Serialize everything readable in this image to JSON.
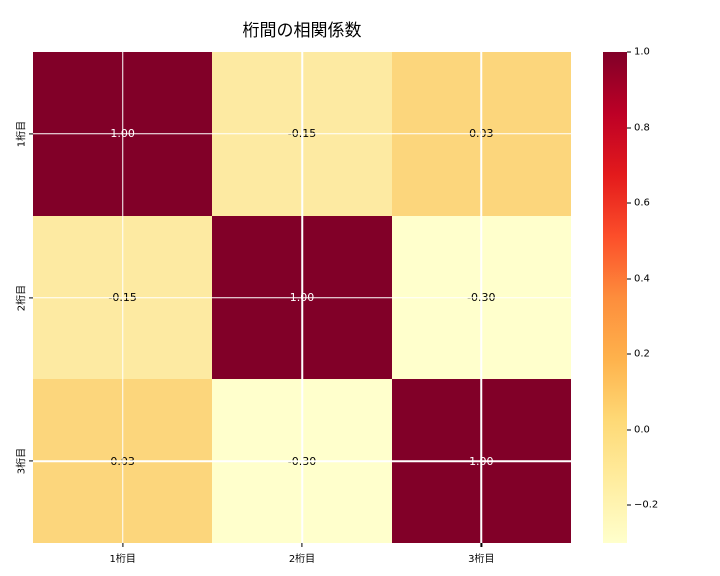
{
  "chart_data": {
    "type": "heatmap",
    "title": "桁間の相関係数",
    "categories": [
      "1桁目",
      "2桁目",
      "3桁目"
    ],
    "x_axis_labels": [
      "1桁目",
      "2桁目",
      "3桁目"
    ],
    "y_axis_labels": [
      "1桁目",
      "2桁目",
      "3桁目"
    ],
    "matrix": [
      [
        1.0,
        -0.15,
        0.03
      ],
      [
        -0.15,
        1.0,
        -0.3
      ],
      [
        0.03,
        -0.3,
        1.0
      ]
    ],
    "cell_labels": [
      [
        "1.00",
        "-0.15",
        "0.03"
      ],
      [
        "-0.15",
        "1.00",
        "-0.30"
      ],
      [
        "0.03",
        "-0.30",
        "1.00"
      ]
    ],
    "cell_colors": [
      [
        "#810028",
        "#fdeaa2",
        "#fcd67c"
      ],
      [
        "#fdeaa2",
        "#810028",
        "#ffffcc"
      ],
      [
        "#fcd67c",
        "#ffffcc",
        "#810028"
      ]
    ],
    "cell_text_colors": [
      [
        "#ffffff",
        "#000000",
        "#000000"
      ],
      [
        "#000000",
        "#ffffff",
        "#000000"
      ],
      [
        "#000000",
        "#000000",
        "#ffffff"
      ]
    ],
    "colormap": "YlOrRd",
    "vmin": -0.3,
    "vmax": 1.0,
    "grid_on": true,
    "grid_color": "#ffffff",
    "background_color": "#ffffff",
    "colorbar": {
      "position": "right",
      "tick_labels": [
        "1.0",
        "0.8",
        "0.6",
        "0.4",
        "0.2",
        "0.0",
        "−0.2"
      ],
      "tick_values": [
        1.0,
        0.8,
        0.6,
        0.4,
        0.2,
        0.0,
        -0.2
      ],
      "gradient_top_to_bottom": [
        "#810028",
        "#bd0026",
        "#e31a1c",
        "#fc4e2a",
        "#fd8d3c",
        "#feb24c",
        "#fed976",
        "#ffeda0",
        "#ffffcc"
      ]
    }
  }
}
